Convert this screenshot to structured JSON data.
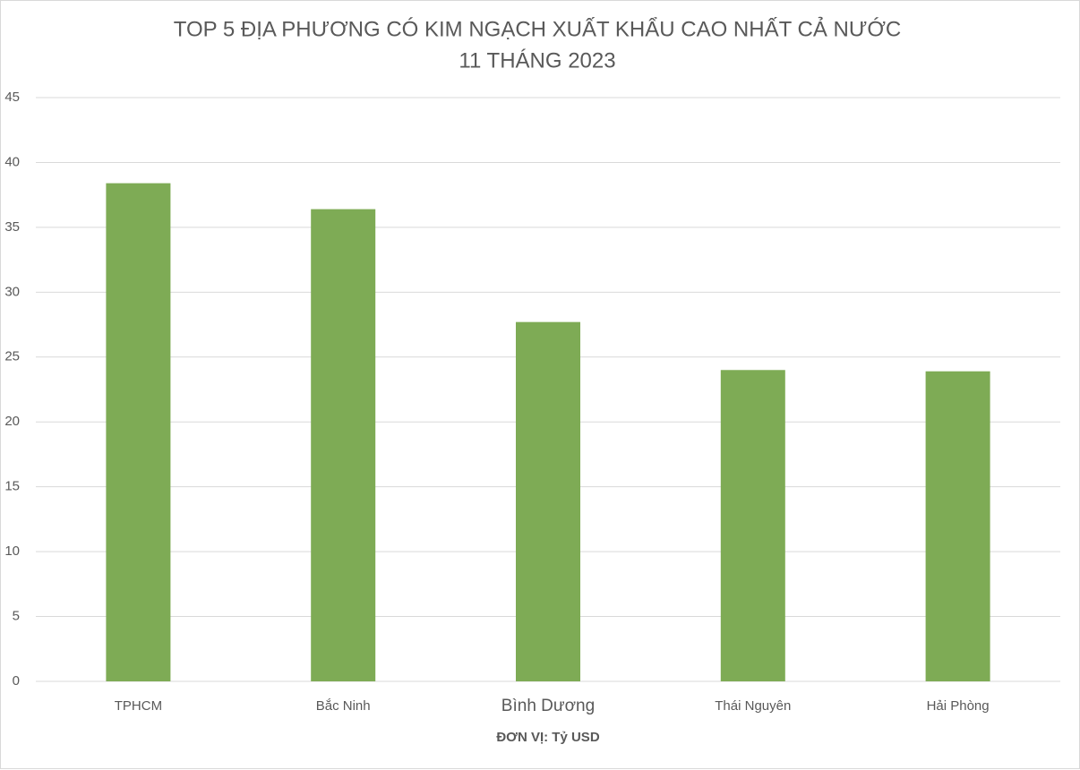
{
  "chart_data": {
    "type": "bar",
    "title": "TOP 5 ĐỊA PHƯƠNG CÓ KIM NGẠCH XUẤT KHẨU CAO NHẤT CẢ NƯỚC",
    "subtitle": "11 THÁNG 2023",
    "x_label": "ĐƠN VỊ: Tỷ USD",
    "categories": [
      "TPHCM",
      "Bắc Ninh",
      "Bình Dương",
      "Thái Nguyên",
      "Hải Phòng"
    ],
    "values": [
      38.4,
      36.4,
      27.7,
      24.0,
      23.9
    ],
    "color": "#7eab55",
    "ylim": [
      0,
      45
    ],
    "yticks": [
      0,
      5,
      10,
      15,
      20,
      25,
      30,
      35,
      40,
      45
    ],
    "grid": true
  }
}
